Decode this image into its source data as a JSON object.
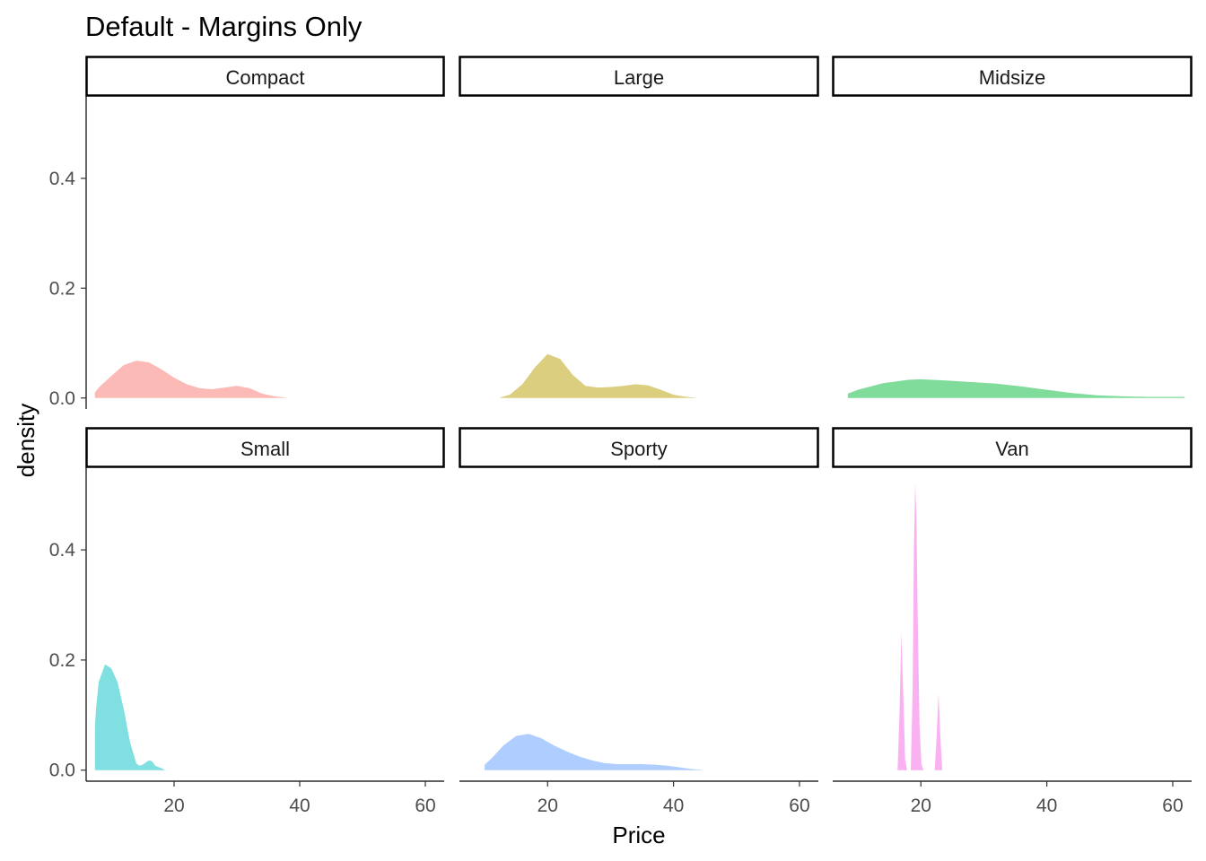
{
  "chart_data": {
    "type": "area",
    "subtype": "density",
    "title": "Default - Margins Only",
    "xlabel": "Price",
    "ylabel": "density",
    "xlim": [
      6.0,
      63.0
    ],
    "ylim": [
      -0.02,
      0.55
    ],
    "x_ticks": [
      20,
      40,
      60
    ],
    "x_tick_labels": [
      "20",
      "40",
      "60"
    ],
    "y_ticks": [
      0.0,
      0.2,
      0.4
    ],
    "y_tick_labels": [
      "0.0",
      "0.2",
      "0.4"
    ],
    "grid": false,
    "facets": [
      {
        "name": "Compact",
        "color": "#F8766D",
        "x": [
          7.4,
          8,
          10,
          12,
          14,
          16,
          18,
          20,
          22,
          24,
          26,
          28,
          30,
          32,
          34,
          36,
          38
        ],
        "y": [
          0.01,
          0.019,
          0.04,
          0.06,
          0.068,
          0.065,
          0.052,
          0.037,
          0.025,
          0.018,
          0.016,
          0.019,
          0.022,
          0.018,
          0.008,
          0.003,
          0.0003
        ]
      },
      {
        "name": "Large",
        "color": "#B79F00",
        "x": [
          12.5,
          14,
          16,
          18,
          20,
          22,
          24,
          26,
          28,
          30,
          32,
          34,
          36,
          38,
          40,
          42,
          43.5
        ],
        "y": [
          0.001,
          0.006,
          0.025,
          0.056,
          0.08,
          0.071,
          0.042,
          0.022,
          0.019,
          0.02,
          0.022,
          0.025,
          0.023,
          0.015,
          0.006,
          0.002,
          0.0005
        ]
      },
      {
        "name": "Midsize",
        "color": "#00BA38",
        "x": [
          8.4,
          10,
          14,
          18,
          20,
          24,
          28,
          32,
          36,
          40,
          44,
          48,
          52,
          56,
          61.9
        ],
        "y": [
          0.008,
          0.015,
          0.027,
          0.033,
          0.034,
          0.032,
          0.029,
          0.026,
          0.021,
          0.015,
          0.009,
          0.005,
          0.003,
          0.002,
          0.002
        ]
      },
      {
        "name": "Small",
        "color": "#00BFC4",
        "x": [
          7.4,
          7.6,
          8,
          9,
          10,
          11,
          12,
          13,
          14,
          14.5,
          15,
          16,
          16.5,
          17,
          18.5
        ],
        "y": [
          0.08,
          0.115,
          0.16,
          0.192,
          0.185,
          0.16,
          0.11,
          0.05,
          0.012,
          0.008,
          0.01,
          0.018,
          0.016,
          0.008,
          0.001
        ]
      },
      {
        "name": "Sporty",
        "color": "#619CFF",
        "x": [
          10.0,
          11,
          13,
          15,
          17,
          19,
          21,
          23,
          25,
          27,
          29,
          31,
          33,
          35,
          37,
          39,
          41,
          43,
          44.5
        ],
        "y": [
          0.01,
          0.02,
          0.045,
          0.062,
          0.066,
          0.058,
          0.045,
          0.034,
          0.025,
          0.018,
          0.013,
          0.011,
          0.011,
          0.011,
          0.01,
          0.008,
          0.005,
          0.002,
          0.0005
        ]
      },
      {
        "name": "Van",
        "color": "#F564E3",
        "x": [
          16.3,
          16.6,
          16.9,
          17.2,
          17.5,
          17.8,
          18.1,
          18.4,
          18.7,
          18.9,
          19.1,
          19.3,
          19.5,
          19.8,
          20.1,
          20.4,
          22.2,
          22.5,
          22.8,
          23.1,
          23.4
        ],
        "y": [
          0.0,
          0.1,
          0.25,
          0.14,
          0.02,
          0.0,
          0.0,
          0.0,
          0.15,
          0.4,
          0.52,
          0.46,
          0.28,
          0.08,
          0.01,
          0.0,
          0.0,
          0.06,
          0.14,
          0.06,
          0.0
        ]
      }
    ]
  }
}
